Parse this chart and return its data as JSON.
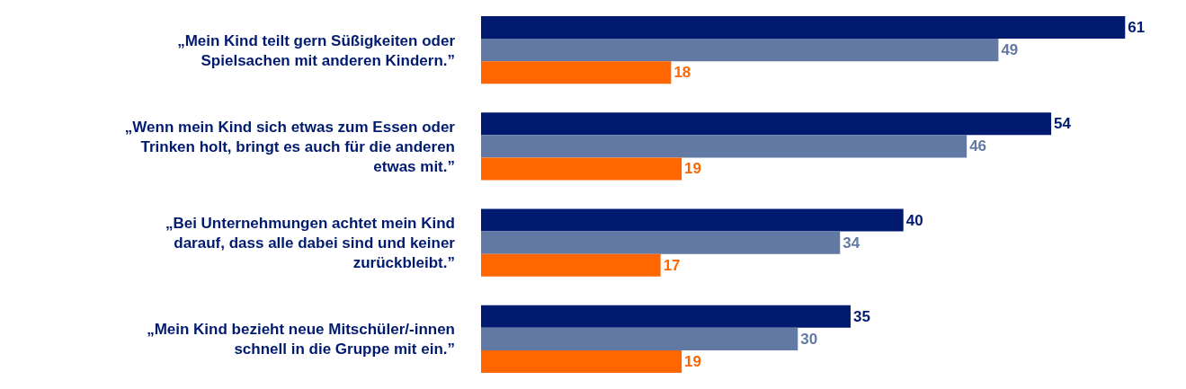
{
  "chart_data": {
    "type": "bar",
    "orientation": "horizontal",
    "data_labels": true,
    "tick_labels": "y",
    "categories": [
      "„Mein Kind teilt gern Süßigkeiten oder\nSpielsachen mit anderen Kindern.”",
      "„Wenn mein Kind sich etwas zum Essen oder\nTrinken holt, bringt es auch für die anderen\netwas mit.”",
      "„Bei Unternehmungen achtet mein Kind\ndarauf, dass alle dabei sind und keiner\nzurückbleibt.”",
      "„Mein Kind bezieht neue Mitschüler/-innen\nschnell in die Gruppe mit ein.”"
    ],
    "series": [
      {
        "color": "#001a70",
        "values": [
          61,
          54,
          40,
          35
        ]
      },
      {
        "color": "#6179a3",
        "values": [
          49,
          46,
          34,
          30
        ]
      },
      {
        "color": "#ff6600",
        "values": [
          18,
          19,
          17,
          19
        ]
      }
    ]
  }
}
